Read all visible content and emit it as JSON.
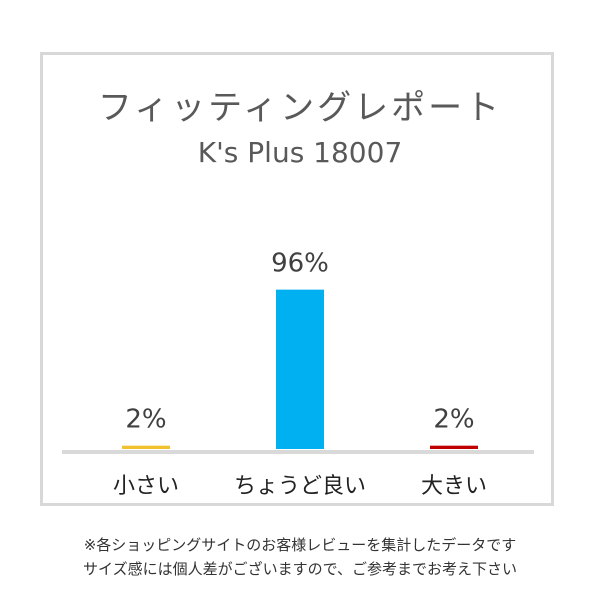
{
  "chart_data": {
    "type": "bar",
    "title": "フィッティングレポート",
    "subtitle": "K's Plus 18007",
    "categories": [
      "小さい",
      "ちょうど良い",
      "大きい"
    ],
    "values": [
      2,
      96,
      2
    ],
    "data_labels": [
      "2%",
      "96%",
      "2%"
    ],
    "colors": [
      "#f2c12e",
      "#00b0f0",
      "#c00000"
    ],
    "ylim": [
      0,
      100
    ],
    "grid": false,
    "legend": "none"
  },
  "notes": {
    "line1": "※各ショッピングサイトのお客様レビューを集計したデータです",
    "line2": "サイズ感には個人差がございますので、ご参考までお考え下さい"
  }
}
